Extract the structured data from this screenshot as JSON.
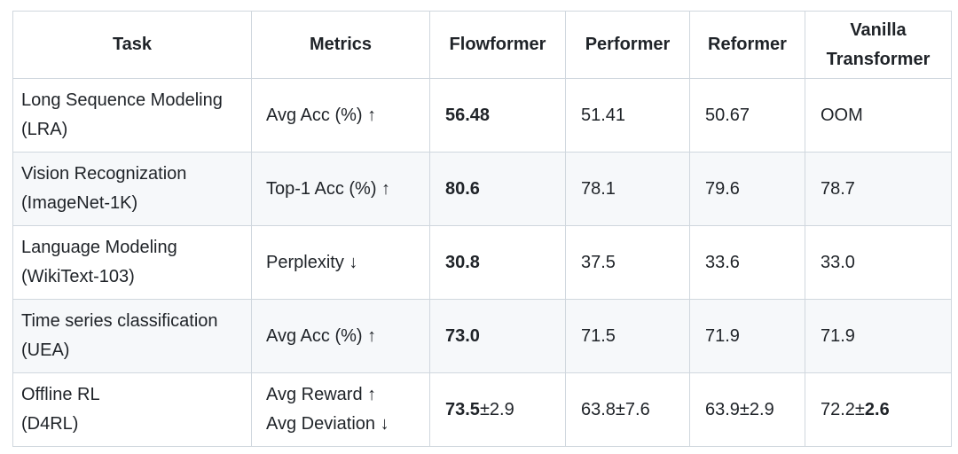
{
  "table": {
    "colors": {
      "border": "#d0d7de",
      "stripe": "#f6f8fa",
      "text": "#1f2328",
      "background": "#ffffff"
    },
    "columns": [
      {
        "label": "Task"
      },
      {
        "label": "Metrics"
      },
      {
        "label": "Flowformer"
      },
      {
        "label": "Performer"
      },
      {
        "label": "Reformer"
      },
      {
        "label": "Vanilla Transformer"
      }
    ],
    "rows": [
      {
        "task": [
          "Long Sequence Modeling",
          "(LRA)"
        ],
        "metrics": [
          "Avg Acc (%) ↑"
        ],
        "cells": [
          [
            {
              "text": "56.48",
              "bold": true
            }
          ],
          [
            {
              "text": "51.41",
              "bold": false
            }
          ],
          [
            {
              "text": "50.67",
              "bold": false
            }
          ],
          [
            {
              "text": "OOM",
              "bold": false
            }
          ]
        ]
      },
      {
        "task": [
          "Vision Recognization",
          "(ImageNet-1K)"
        ],
        "metrics": [
          "Top-1 Acc (%) ↑"
        ],
        "cells": [
          [
            {
              "text": "80.6",
              "bold": true
            }
          ],
          [
            {
              "text": "78.1",
              "bold": false
            }
          ],
          [
            {
              "text": "79.6",
              "bold": false
            }
          ],
          [
            {
              "text": "78.7",
              "bold": false
            }
          ]
        ]
      },
      {
        "task": [
          "Language Modeling",
          "(WikiText-103)"
        ],
        "metrics": [
          "Perplexity ↓"
        ],
        "cells": [
          [
            {
              "text": "30.8",
              "bold": true
            }
          ],
          [
            {
              "text": "37.5",
              "bold": false
            }
          ],
          [
            {
              "text": "33.6",
              "bold": false
            }
          ],
          [
            {
              "text": "33.0",
              "bold": false
            }
          ]
        ]
      },
      {
        "task": [
          "Time series classification",
          "(UEA)"
        ],
        "metrics": [
          "Avg Acc (%) ↑"
        ],
        "cells": [
          [
            {
              "text": "73.0",
              "bold": true
            }
          ],
          [
            {
              "text": "71.5",
              "bold": false
            }
          ],
          [
            {
              "text": "71.9",
              "bold": false
            }
          ],
          [
            {
              "text": "71.9",
              "bold": false
            }
          ]
        ]
      },
      {
        "task": [
          "Offline RL",
          "(D4RL)"
        ],
        "metrics": [
          "Avg Reward ↑",
          "Avg Deviation ↓"
        ],
        "cells": [
          [
            {
              "text": "73.5",
              "bold": true
            },
            {
              "text": "±2.9",
              "bold": false
            }
          ],
          [
            {
              "text": "63.8±7.6",
              "bold": false
            }
          ],
          [
            {
              "text": "63.9±2.9",
              "bold": false
            }
          ],
          [
            {
              "text": "72.2±",
              "bold": false
            },
            {
              "text": "2.6",
              "bold": true
            }
          ]
        ]
      }
    ]
  }
}
